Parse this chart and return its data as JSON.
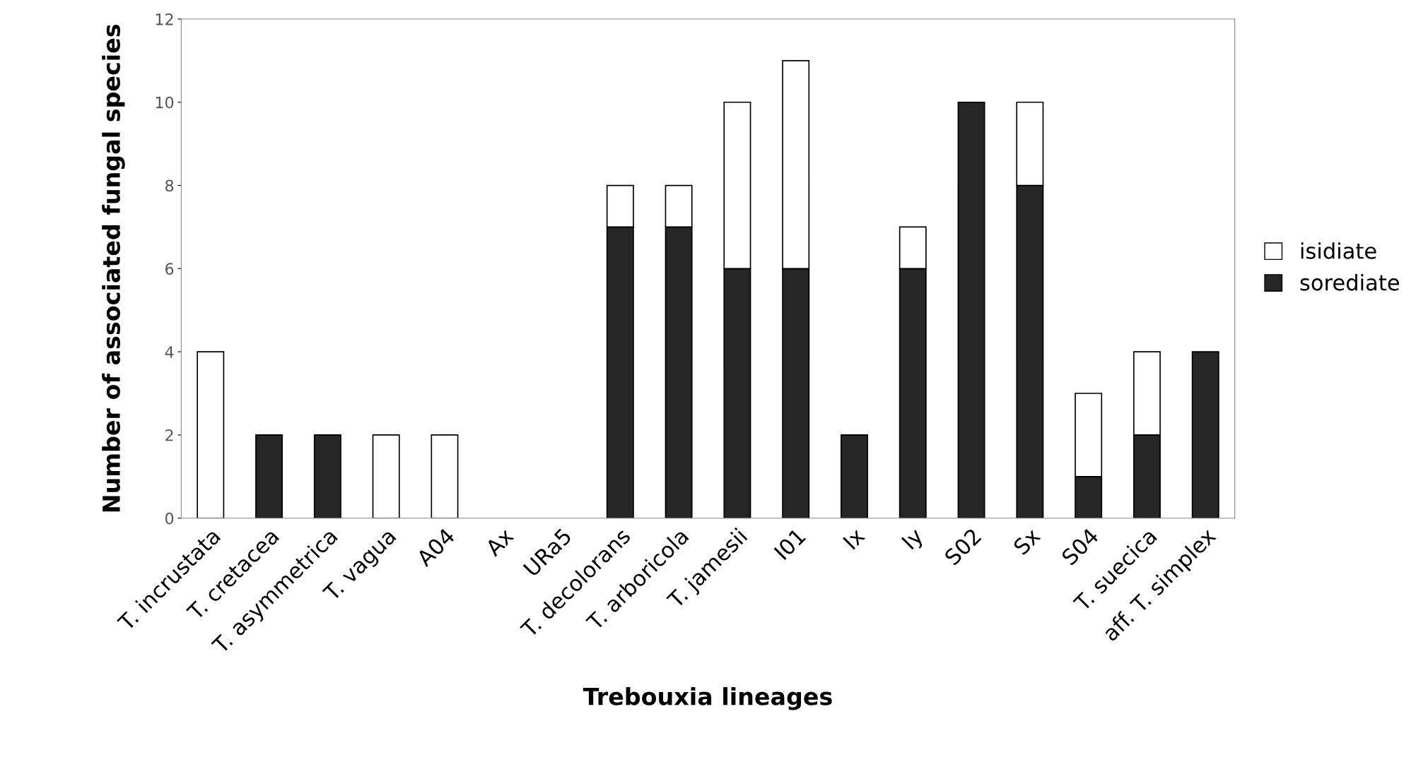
{
  "chart_data": {
    "type": "bar",
    "stacked": true,
    "xlabel": "Trebouxia lineages",
    "ylabel": "Number of associated fungal species",
    "categories": [
      "T. incrustata",
      "T. cretacea",
      "T. asymmetrica",
      "T. vagua",
      "A04",
      "Ax",
      "URa5",
      "T. decolorans",
      "T. arboricola",
      "T. jamesii",
      "I01",
      "Ix",
      "Iy",
      "S02",
      "Sx",
      "S04",
      "T. suecica",
      "aff. T. simplex"
    ],
    "series": [
      {
        "name": "sorediate",
        "color": "#262626",
        "values": [
          0,
          2,
          2,
          0,
          0,
          0,
          0,
          7,
          7,
          6,
          6,
          2,
          6,
          10,
          8,
          1,
          2,
          4
        ]
      },
      {
        "name": "isidiate",
        "color": "#ffffff",
        "values": [
          4,
          0,
          0,
          2,
          2,
          0,
          0,
          1,
          1,
          4,
          5,
          0,
          1,
          0,
          2,
          2,
          2,
          0
        ]
      }
    ],
    "ylim": [
      0,
      12
    ],
    "yticks": [
      0,
      2,
      4,
      6,
      8,
      10,
      12
    ],
    "grid": false,
    "legend": "right"
  }
}
